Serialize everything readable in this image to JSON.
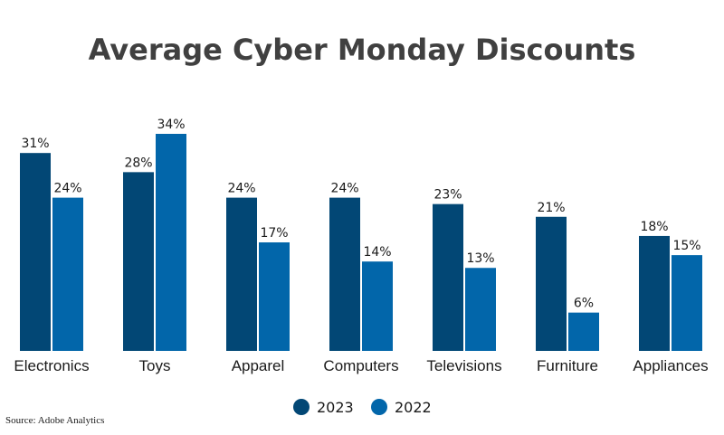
{
  "chart_data": {
    "type": "bar",
    "title": "Average Cyber Monday Discounts",
    "categories": [
      "Electronics",
      "Toys",
      "Apparel",
      "Computers",
      "Televisions",
      "Furniture",
      "Appliances"
    ],
    "series": [
      {
        "name": "2023",
        "color": "#024775",
        "values": [
          31,
          28,
          24,
          24,
          23,
          21,
          18
        ]
      },
      {
        "name": "2022",
        "color": "#0266aa",
        "values": [
          24,
          34,
          17,
          14,
          13,
          6,
          15
        ]
      }
    ],
    "value_suffix": "%",
    "ylim": [
      0,
      34
    ],
    "grid": false,
    "legend": "bottom-center"
  },
  "source": "Source: Adobe Analytics"
}
